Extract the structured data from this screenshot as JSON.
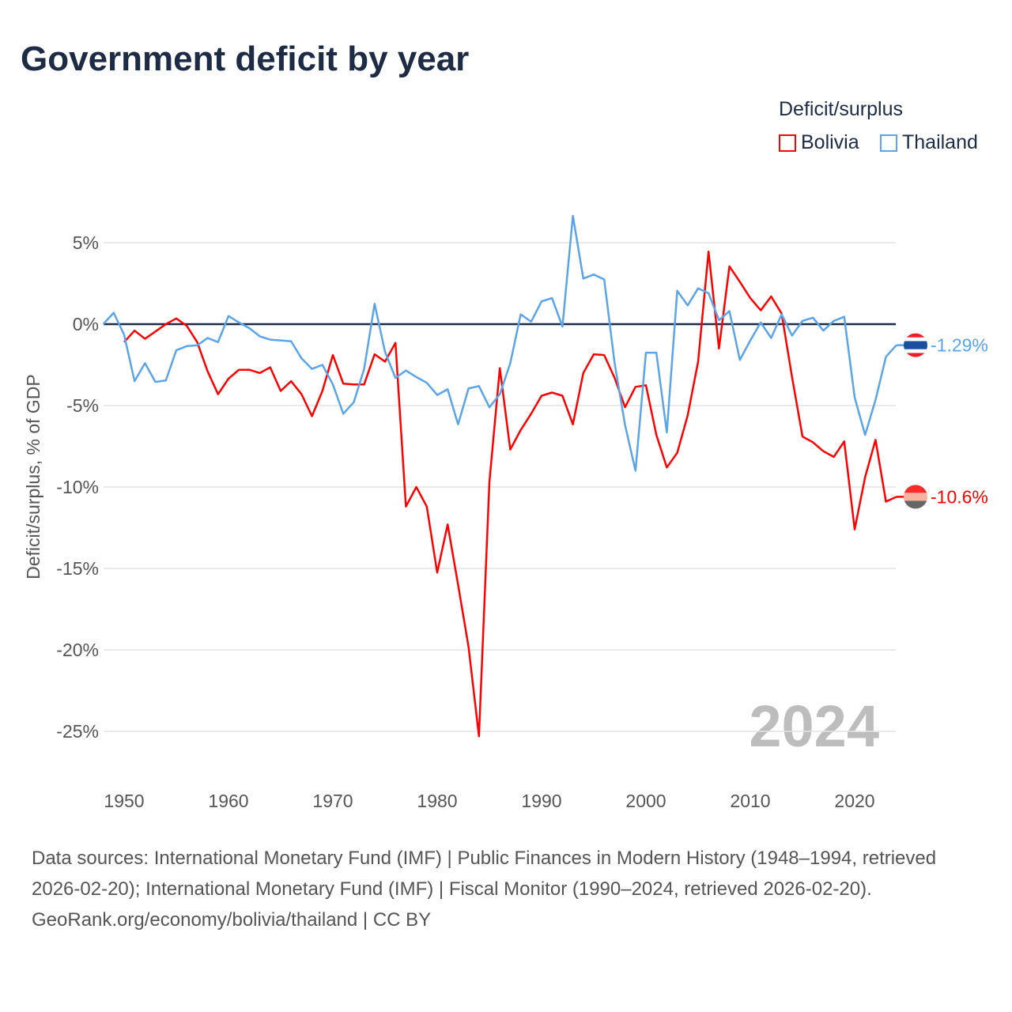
{
  "chart_data": {
    "type": "line",
    "title": "Government deficit by year",
    "ylabel": "Deficit/surplus, % of GDP",
    "xlabel": "",
    "legend_title": "Deficit/surplus",
    "legend_placement": "top-right",
    "xlim": [
      1948,
      2024
    ],
    "ylim": [
      -27,
      7
    ],
    "x_ticks": [
      1950,
      1960,
      1970,
      1980,
      1990,
      2000,
      2010,
      2020
    ],
    "x_tick_labels": [
      "1950",
      "1960",
      "1970",
      "1980",
      "1990",
      "2000",
      "2010",
      "2020"
    ],
    "y_ticks": [
      5,
      0,
      -5,
      -10,
      -15,
      -20,
      -25
    ],
    "y_tick_labels": [
      "5%",
      "0%",
      "-5%",
      "-10%",
      "-15%",
      "-20%",
      "-25%"
    ],
    "grid": true,
    "year_watermark": "2024",
    "series": [
      {
        "name": "Bolivia",
        "color": "#ff0000",
        "end_label": "-10.6%",
        "start_year": 1950,
        "values": [
          -1.1,
          -0.4,
          -0.9,
          -0.45,
          0,
          0.35,
          -0.1,
          -1.1,
          -2.9,
          -4.3,
          -3.35,
          -2.8,
          -2.8,
          -3.0,
          -2.65,
          -4.1,
          -3.5,
          -4.3,
          -5.65,
          -4.1,
          -1.9,
          -3.65,
          -3.7,
          -3.7,
          -1.85,
          -2.3,
          -1.15,
          -11.2,
          -10.0,
          -11.2,
          -15.25,
          -12.3,
          -16.0,
          -19.8,
          -25.3,
          -9.7,
          -2.7,
          -7.7,
          -6.5,
          -5.5,
          -4.4,
          -4.2,
          -4.4,
          -6.15,
          -3.0,
          -1.85,
          -1.9,
          -3.3,
          -5.1,
          -3.85,
          -3.75,
          -6.8,
          -8.8,
          -7.9,
          -5.6,
          -2.3,
          4.45,
          -1.5,
          3.55,
          2.6,
          1.6,
          0.85,
          1.7,
          0.65,
          -3.25,
          -6.9,
          -7.25,
          -7.8,
          -8.15,
          -7.2,
          -12.6,
          -9.4,
          -7.1,
          -10.9,
          -10.6
        ]
      },
      {
        "name": "Thailand",
        "color": "#5aa5ea",
        "end_label": "-1.29%",
        "start_year": 1948,
        "values": [
          0,
          0.7,
          -0.65,
          -3.5,
          -2.4,
          -3.55,
          -3.45,
          -1.6,
          -1.35,
          -1.3,
          -0.85,
          -1.1,
          0.5,
          0.1,
          -0.25,
          -0.75,
          -0.95,
          -1.0,
          -1.05,
          -2.1,
          -2.75,
          -2.5,
          -3.7,
          -5.5,
          -4.8,
          -2.75,
          1.25,
          -1.7,
          -3.3,
          -2.85,
          -3.25,
          -3.6,
          -4.35,
          -4.0,
          -6.15,
          -3.95,
          -3.8,
          -5.1,
          -4.3,
          -2.4,
          0.6,
          0.15,
          1.4,
          1.6,
          -0.15,
          6.65,
          2.8,
          3.05,
          2.75,
          -2.4,
          -6.2,
          -9.0,
          -1.75,
          -1.75,
          -6.65,
          2.05,
          1.15,
          2.2,
          1.9,
          0.25,
          0.8,
          -2.2,
          -1.0,
          0.1,
          -0.85,
          0.6,
          -0.7,
          0.2,
          0.4,
          -0.4,
          0.2,
          0.45,
          -4.5,
          -6.8,
          -4.65,
          -2.0,
          -1.29
        ]
      }
    ]
  },
  "footer": {
    "sources": "Data sources: International Monetary Fund (IMF) | Public Finances in Modern History (1948–1994, retrieved 2026-02-20); International Monetary Fund (IMF) | Fiscal Monitor (1990–2024, retrieved 2026-02-20).",
    "credit": "GeoRank.org/economy/bolivia/thailand | CC BY"
  }
}
